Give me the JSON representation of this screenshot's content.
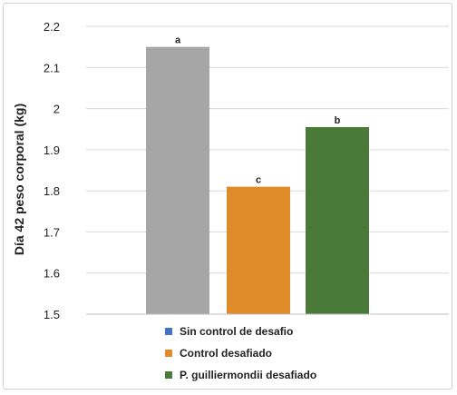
{
  "chart_data": {
    "type": "bar",
    "categories": [
      "Sin control de desafío",
      "Control desafiado",
      "P. guilliermondii desafiado"
    ],
    "values": [
      2.15,
      1.81,
      1.955
    ],
    "data_labels": [
      "a",
      "c",
      "b"
    ],
    "colors": [
      "#a6a6a6",
      "#e08b2a",
      "#4a7a37"
    ],
    "legend": {
      "position": "bottom",
      "entries": [
        {
          "label": "Sin control de desafio",
          "color": "#4472c4"
        },
        {
          "label": "Control desafiado",
          "color": "#e08b2a"
        },
        {
          "label": "P. guilliermondii desafiado",
          "color": "#4a7a37"
        }
      ]
    },
    "ylabel": "Día 42 peso corporal (kg)",
    "ylim": [
      1.5,
      2.2
    ],
    "yticks": [
      "1.5",
      "1.6",
      "1.7",
      "1.8",
      "1.9",
      "2",
      "2.1",
      "2.2"
    ],
    "grid": true
  }
}
